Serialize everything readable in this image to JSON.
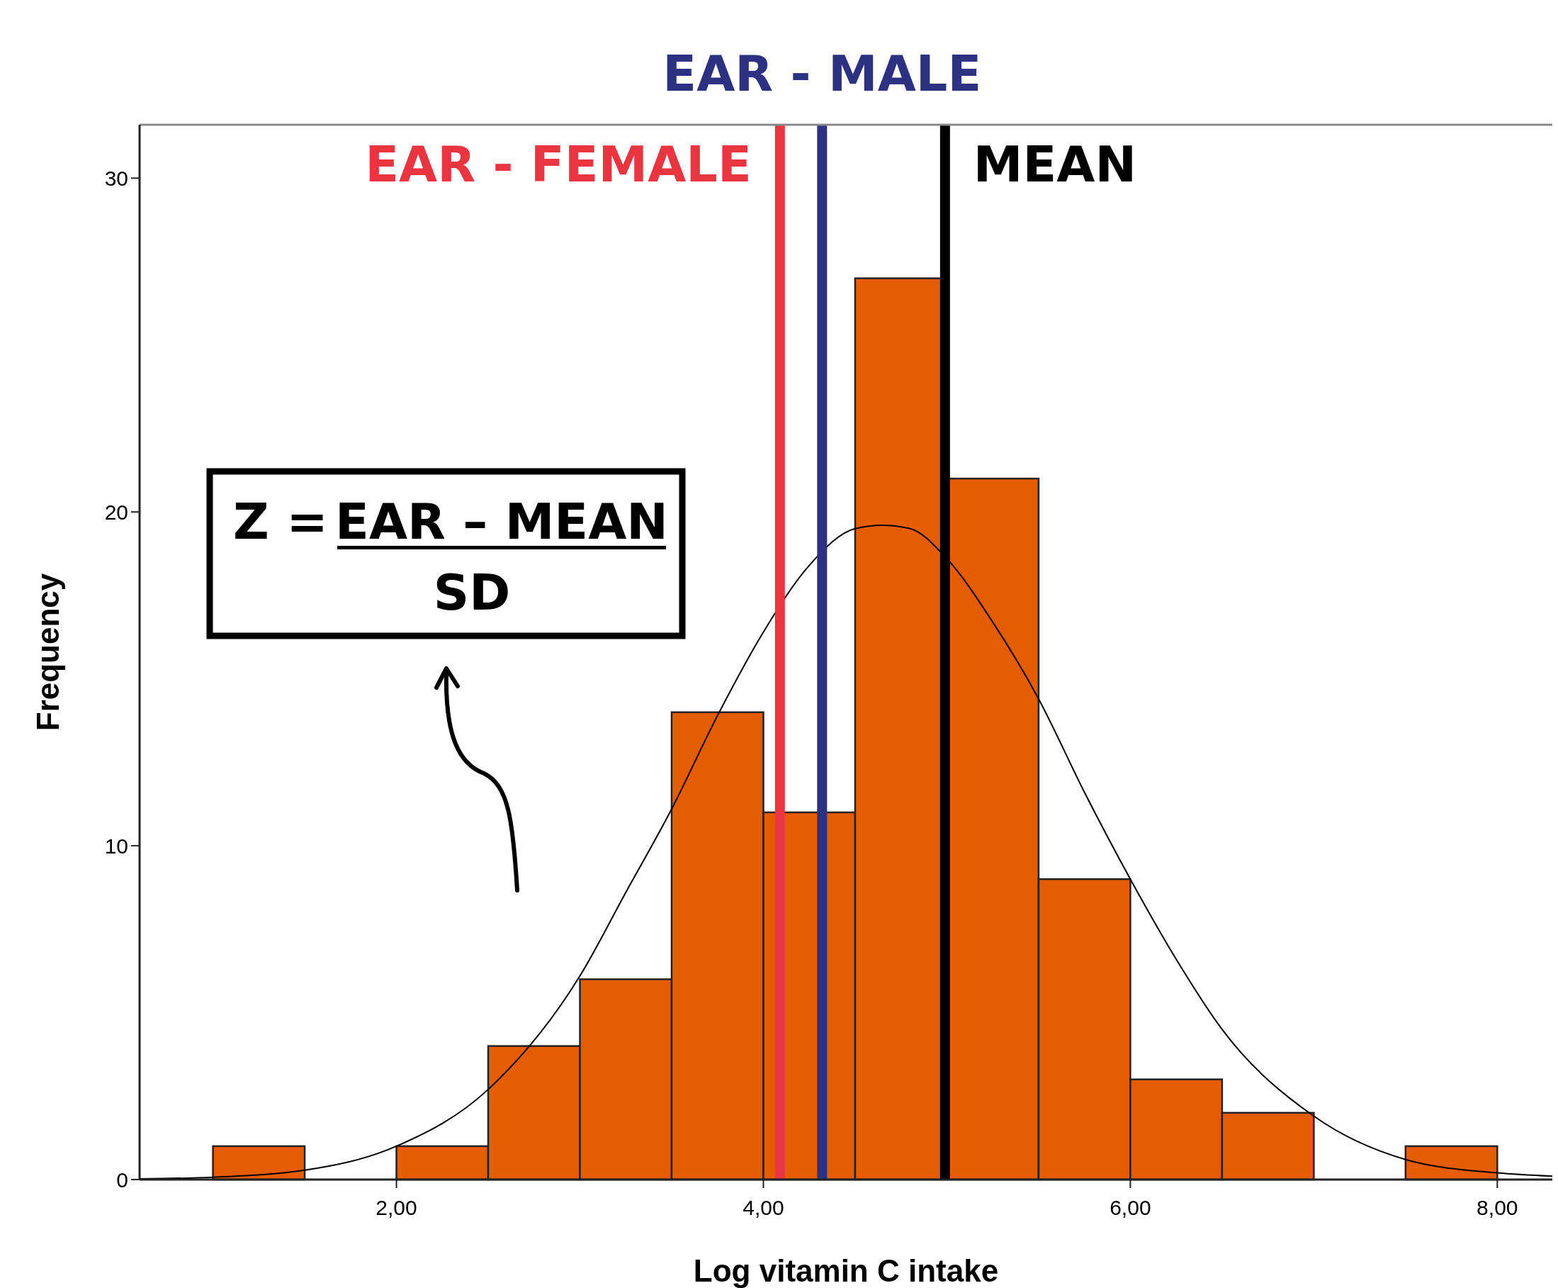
{
  "chart_data": {
    "type": "histogram",
    "xlabel": "Log vitamin C intake",
    "ylabel": "Frequency",
    "xlim": [
      0.6,
      8.3
    ],
    "ylim": [
      0,
      31.6
    ],
    "xticks": [
      {
        "value": 2,
        "label": "2,00"
      },
      {
        "value": 4,
        "label": "4,00"
      },
      {
        "value": 6,
        "label": "6,00"
      },
      {
        "value": 8,
        "label": "8,00"
      }
    ],
    "yticks": [
      0,
      10,
      20,
      30
    ],
    "grid": false,
    "series": [
      {
        "color": "#e65c00",
        "bins": [
          1,
          1.5,
          2,
          2.5,
          3,
          3.5,
          4,
          4.5,
          5,
          5.5,
          6,
          6.5,
          7,
          7.5,
          8
        ],
        "values": [
          1,
          0,
          1,
          4,
          6,
          14,
          11,
          27,
          21,
          9,
          3,
          2,
          0,
          1
        ]
      },
      {
        "type": "line",
        "color": "#000000",
        "x": [
          0.6,
          1,
          1.5,
          2,
          2.5,
          3,
          3.25,
          3.5,
          3.75,
          4,
          4.25,
          4.5,
          4.65,
          4.8,
          5,
          5.25,
          5.5,
          5.75,
          6,
          6.25,
          6.5,
          7,
          7.5,
          8,
          8.3
        ],
        "values": [
          0.02,
          0.07,
          0.28,
          1,
          2.7,
          6.1,
          8.6,
          11.1,
          13.9,
          16.4,
          18.4,
          19.5,
          19.6,
          19.5,
          18.6,
          16.7,
          14.4,
          11.6,
          9,
          6.6,
          4.5,
          1.9,
          0.6,
          0.2,
          0.1
        ]
      }
    ],
    "ref_lines": [
      {
        "axis": "x",
        "value": 4.09,
        "label": "EAR - FEMALE",
        "color": "#e8353f"
      },
      {
        "axis": "x",
        "value": 4.32,
        "label": "EAR - MALE",
        "color": "#2e3182"
      },
      {
        "axis": "x",
        "value": 4.99,
        "label": "MEAN",
        "color": "#000000"
      }
    ],
    "annotations": [
      "Z =",
      "EAR – MEAN",
      "SD"
    ]
  }
}
